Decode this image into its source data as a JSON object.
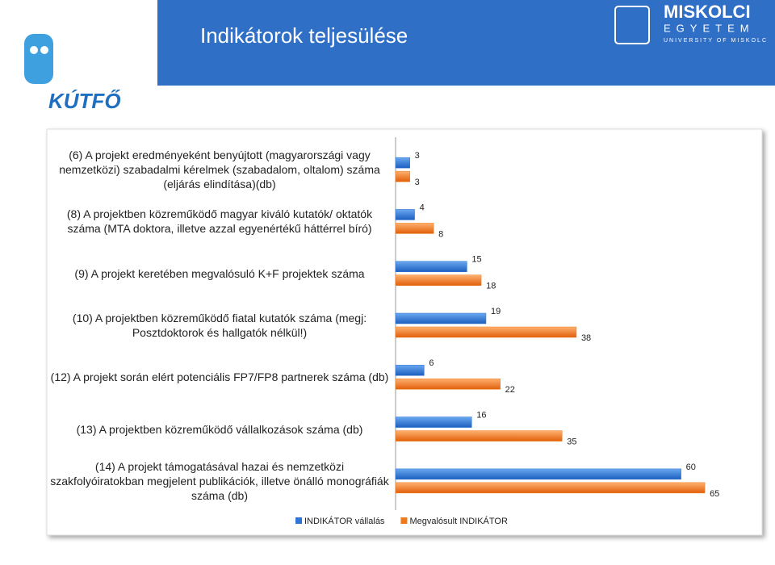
{
  "header": {
    "title": "Indikátorok teljesülése",
    "left_logo": "KÚTFŐ",
    "right_logo": [
      "MISKOLCI",
      "EGYETEM",
      "UNIVERSITY OF MISKOLC"
    ]
  },
  "chart_data": {
    "type": "hbar",
    "categories": [
      "(6) A projekt eredményeként benyújtott (magyarországi vagy nemzetközi) szabadalmi kérelmek (szabadalom, oltalom) száma (eljárás elindítása)(db)",
      "(8) A projektben közreműködő magyar kiváló kutatók/ oktatók száma (MTA doktora, illetve azzal egyenértékű háttérrel bíró)",
      "(9) A projekt keretében megvalósuló K+F projektek száma",
      "(10) A projektben közreműködő fiatal kutatók száma (megj: Posztdoktorok és hallgatók nélkül!)",
      "(12) A projekt során elért potenciális FP7/FP8 partnerek száma (db)",
      "(13) A projektben közreműködő vállalkozások száma (db)",
      "(14) A projekt támogatásával hazai és nemzetközi szakfolyóiratokban megjelent publikációk, illetve önálló monográfiák száma (db)"
    ],
    "series": [
      {
        "name": "INDIKÁTOR vállalás",
        "color": "#2e75d6",
        "values": [
          3,
          4,
          15,
          19,
          6,
          16,
          60
        ]
      },
      {
        "name": "Megvalósult INDIKÁTOR",
        "color": "#f07a1a",
        "values": [
          3,
          8,
          18,
          38,
          22,
          35,
          65
        ]
      }
    ],
    "xlim": [
      0,
      75
    ],
    "legend": "bottom"
  }
}
